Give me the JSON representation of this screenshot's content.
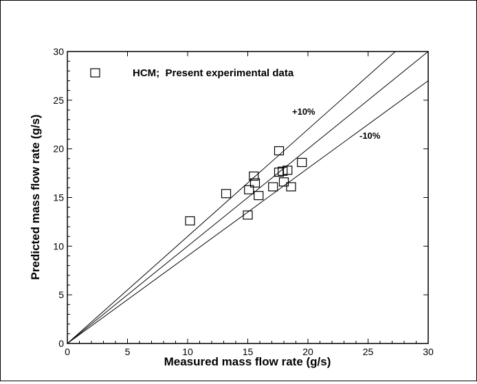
{
  "chart_data": {
    "type": "scatter",
    "title": "",
    "xlabel": "Measured mass flow rate (g/s)",
    "ylabel": "Predicted mass flow rate (g/s)",
    "xlim": [
      0,
      30
    ],
    "ylim": [
      0,
      30
    ],
    "xticks": [
      "0",
      "5",
      "10",
      "15",
      "20",
      "25",
      "30"
    ],
    "yticks": [
      "0",
      "5",
      "10",
      "15",
      "20",
      "25",
      "30"
    ],
    "grid": false,
    "legend": {
      "entries": [
        "HCM;  Present experimental data"
      ],
      "placement": "top-left"
    },
    "annotations": [
      "+10%",
      "-10%"
    ],
    "reference_lines": [
      {
        "name": "+10%",
        "slope": 1.1
      },
      {
        "name": "",
        "slope": 1.0
      },
      {
        "name": "-10%",
        "slope": 0.9
      }
    ],
    "series": [
      {
        "marker": "open-square",
        "points": [
          [
            10.2,
            12.6
          ],
          [
            13.2,
            15.4
          ],
          [
            15.0,
            13.2
          ],
          [
            15.1,
            15.8
          ],
          [
            15.5,
            17.2
          ],
          [
            15.6,
            16.5
          ],
          [
            15.9,
            15.2
          ],
          [
            17.1,
            16.1
          ],
          [
            17.6,
            19.8
          ],
          [
            17.6,
            17.6
          ],
          [
            17.9,
            17.7
          ],
          [
            18.0,
            16.6
          ],
          [
            18.3,
            17.8
          ],
          [
            18.6,
            16.1
          ],
          [
            19.5,
            18.6
          ]
        ]
      }
    ]
  }
}
